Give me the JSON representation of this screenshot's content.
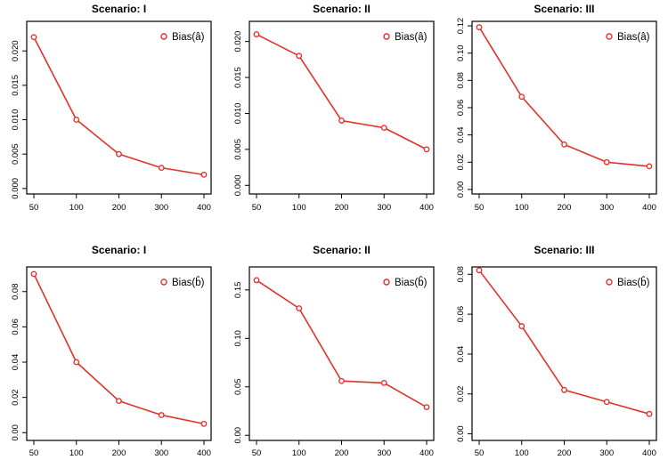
{
  "figure": {
    "background": "#ffffff",
    "line_color": "#e0312a",
    "axis_color": "#000000",
    "text_color": "#000000",
    "marker_style": "open-circle",
    "layout": "2 rows x 3 columns"
  },
  "chart_data": [
    {
      "type": "line",
      "title": "Scenario: I",
      "legend": "Bias(â)",
      "legend_position": "top-right",
      "x": [
        50,
        100,
        200,
        300,
        400
      ],
      "x_tick_labels": [
        "50",
        "100",
        "200",
        "300",
        "400"
      ],
      "values": [
        0.022,
        0.01,
        0.005,
        0.003,
        0.002
      ],
      "y_tick_labels": [
        "0.000",
        "0.005",
        "0.010",
        "0.015",
        "0.020"
      ],
      "ylim": [
        -0.0008,
        0.0243
      ],
      "xlabel": "",
      "ylabel": "",
      "grid": false
    },
    {
      "type": "line",
      "title": "Scenario: II",
      "legend": "Bias(â)",
      "legend_position": "top-right",
      "x": [
        50,
        100,
        200,
        300,
        400
      ],
      "x_tick_labels": [
        "50",
        "100",
        "200",
        "300",
        "400"
      ],
      "values": [
        0.021,
        0.018,
        0.009,
        0.008,
        0.005
      ],
      "y_tick_labels": [
        "0.000",
        "0.005",
        "0.010",
        "0.015",
        "0.020"
      ],
      "ylim": [
        -0.0012,
        0.0228
      ],
      "xlabel": "",
      "ylabel": "",
      "grid": false
    },
    {
      "type": "line",
      "title": "Scenario: III",
      "legend": "Bias(â)",
      "legend_position": "top-right",
      "x": [
        50,
        100,
        200,
        300,
        400
      ],
      "x_tick_labels": [
        "50",
        "100",
        "200",
        "300",
        "400"
      ],
      "values": [
        0.119,
        0.068,
        0.033,
        0.02,
        0.017
      ],
      "y_tick_labels": [
        "0.00",
        "0.02",
        "0.04",
        "0.06",
        "0.08",
        "0.10",
        "0.12"
      ],
      "ylim": [
        -0.0033,
        0.1233
      ],
      "xlabel": "",
      "ylabel": "",
      "grid": false
    },
    {
      "type": "line",
      "title": "Scenario: I",
      "legend": "Bias(b̂)",
      "legend_position": "top-right",
      "x": [
        50,
        100,
        200,
        300,
        400
      ],
      "x_tick_labels": [
        "50",
        "100",
        "200",
        "300",
        "400"
      ],
      "values": [
        0.09,
        0.04,
        0.018,
        0.01,
        0.005
      ],
      "y_tick_labels": [
        "0.00",
        "0.02",
        "0.04",
        "0.06",
        "0.08"
      ],
      "ylim": [
        -0.0044,
        0.094
      ],
      "xlabel": "",
      "ylabel": "",
      "grid": false
    },
    {
      "type": "line",
      "title": "Scenario: II",
      "legend": "Bias(b̂)",
      "legend_position": "top-right",
      "x": [
        50,
        100,
        200,
        300,
        400
      ],
      "x_tick_labels": [
        "50",
        "100",
        "200",
        "300",
        "400"
      ],
      "values": [
        0.16,
        0.131,
        0.056,
        0.054,
        0.029
      ],
      "y_tick_labels": [
        "0.00",
        "0.05",
        "0.10",
        "0.15"
      ],
      "ylim": [
        -0.0053,
        0.1737
      ],
      "xlabel": "",
      "ylabel": "",
      "grid": false
    },
    {
      "type": "line",
      "title": "Scenario: III",
      "legend": "Bias(b̂)",
      "legend_position": "top-right",
      "x": [
        50,
        100,
        200,
        300,
        400
      ],
      "x_tick_labels": [
        "50",
        "100",
        "200",
        "300",
        "400"
      ],
      "values": [
        0.082,
        0.054,
        0.022,
        0.016,
        0.01
      ],
      "y_tick_labels": [
        "0.00",
        "0.02",
        "0.04",
        "0.06",
        "0.08"
      ],
      "ylim": [
        -0.0033,
        0.0837
      ],
      "xlabel": "",
      "ylabel": "",
      "grid": false
    }
  ]
}
